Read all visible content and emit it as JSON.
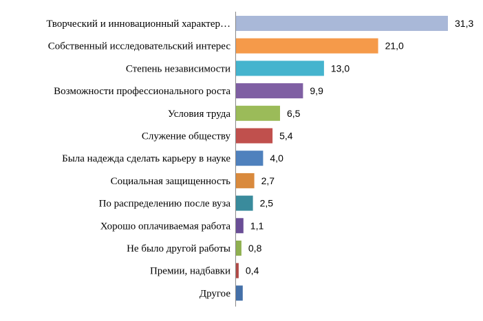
{
  "chart_data": {
    "type": "bar",
    "orientation": "horizontal",
    "categories": [
      "Творческий и инновационный характер…",
      "Собственный исследовательский интерес",
      "Степень независимости",
      "Возможности профессионального роста",
      "Условия труда",
      "Служение обществу",
      "Была надежда сделать карьеру в науке",
      "Социальная защищенность",
      "По распределению после вуза",
      "Хорошо оплачиваемая работа",
      "Не было другой работы",
      "Премии, надбавки",
      "Другое"
    ],
    "values": [
      31.3,
      21.0,
      13.0,
      9.9,
      6.5,
      5.4,
      4.0,
      2.7,
      2.5,
      1.1,
      0.8,
      0.4,
      1.0
    ],
    "value_labels": [
      "31,3",
      "21,0",
      "13,0",
      "9,9",
      "6,5",
      "5,4",
      "4,0",
      "2,7",
      "2,5",
      "1,1",
      "0,8",
      "0,4",
      ""
    ],
    "colors": [
      "#A9B8D8",
      "#F59A4A",
      "#45B4CE",
      "#7F5FA3",
      "#9BBB59",
      "#C0504D",
      "#4F81BD",
      "#D98A3D",
      "#3A8B9C",
      "#6A4E96",
      "#8FB050",
      "#B04A47",
      "#4470A8"
    ],
    "xlim": [
      0,
      31.3
    ],
    "grid": false,
    "legend": "none",
    "title": "",
    "xlabel": "",
    "ylabel": ""
  }
}
